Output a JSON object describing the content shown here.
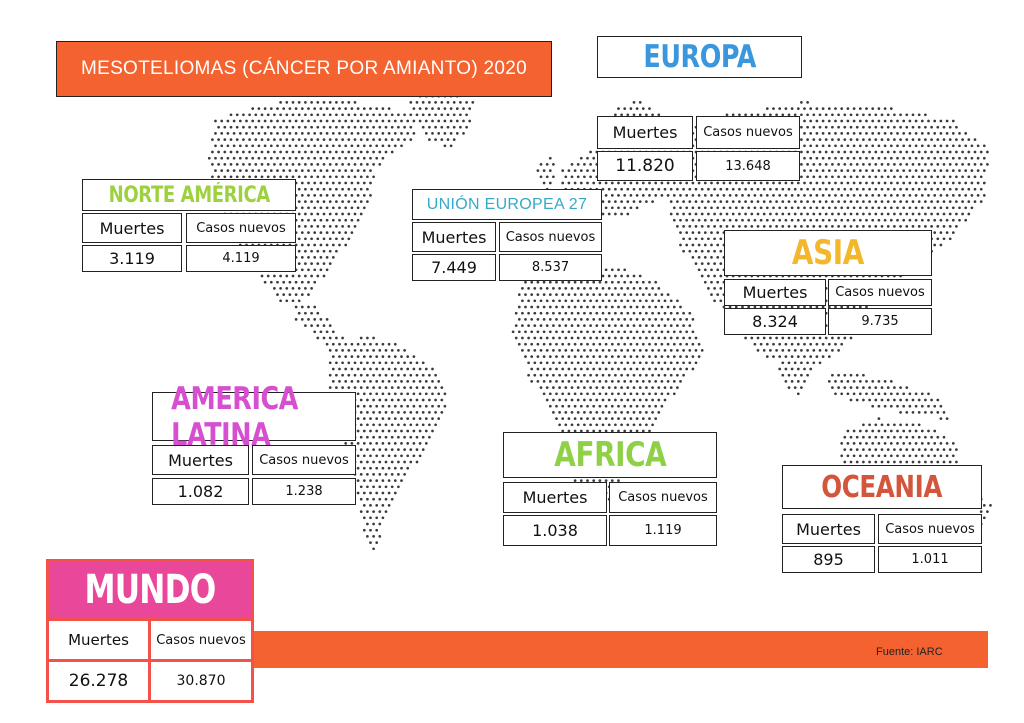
{
  "title": "MESOTELIOMAS (CÁNCER POR AMIANTO) 2020",
  "source": "Fuente: IARC",
  "colors": {
    "accent_orange": "#f4622f",
    "mundo_pink": "#e9479a",
    "mundo_border": "#f4514a"
  },
  "regions": [
    {
      "key": "europa",
      "name": "EUROPA",
      "color": "#3a96dd",
      "deaths_label": "Muertes",
      "cases_label": "Casos nuevos",
      "deaths": "11.820",
      "cases": "13.648"
    },
    {
      "key": "norte_america",
      "name": "NORTE AMÉRICA",
      "color": "#9ed13f",
      "deaths_label": "Muertes",
      "cases_label": "Casos nuevos",
      "deaths": "3.119",
      "cases": "4.119"
    },
    {
      "key": "ue27",
      "name": "UNIÓN EUROPEA 27",
      "color": "#35a9c8",
      "deaths_label": "Muertes",
      "cases_label": "Casos nuevos",
      "deaths": "7.449",
      "cases": "8.537"
    },
    {
      "key": "asia",
      "name": "ASIA",
      "color": "#f2b72a",
      "deaths_label": "Muertes",
      "cases_label": "Casos nuevos",
      "deaths": "8.324",
      "cases": "9.735"
    },
    {
      "key": "america_latina",
      "name": "AMERICA LATINA",
      "color": "#d64fd0",
      "deaths_label": "Muertes",
      "cases_label": "Casos nuevos",
      "deaths": "1.082",
      "cases": "1.238"
    },
    {
      "key": "africa",
      "name": "AFRICA",
      "color": "#8fd146",
      "deaths_label": "Muertes",
      "cases_label": "Casos nuevos",
      "deaths": "1.038",
      "cases": "1.119"
    },
    {
      "key": "oceania",
      "name": "OCEANIA",
      "color": "#d2553c",
      "deaths_label": "Muertes",
      "cases_label": "Casos nuevos",
      "deaths": "895",
      "cases": "1.011"
    }
  ],
  "mundo": {
    "name": "MUNDO",
    "deaths_label": "Muertes",
    "cases_label": "Casos nuevos",
    "deaths": "26.278",
    "cases": "30.870"
  }
}
